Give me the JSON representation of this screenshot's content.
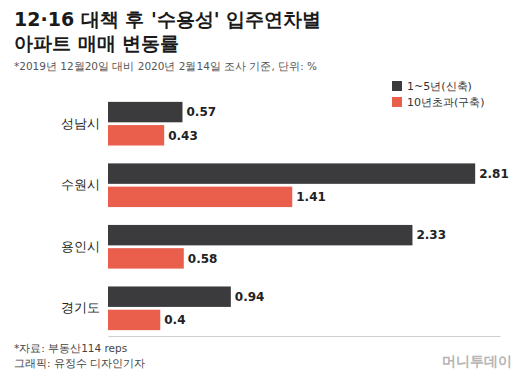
{
  "chart_data": {
    "type": "bar",
    "orientation": "horizontal",
    "title": "12·16 대책 후 '수용성' 입주연차별\n아파트 매매 변동률",
    "subtitle": "*2019년 12월20일 대비 2020년 2월14일 조사 기준, 단위: %",
    "categories": [
      "성남시",
      "수원시",
      "용인시",
      "경기도"
    ],
    "series": [
      {
        "name": "1~5년(신축)",
        "color": "#3b3b3d",
        "values": [
          0.57,
          2.81,
          2.33,
          0.94
        ]
      },
      {
        "name": "10년초과(구축)",
        "color": "#ea5f4c",
        "values": [
          0.43,
          1.41,
          0.58,
          0.4
        ]
      }
    ],
    "xlim": [
      0,
      3
    ],
    "tick_labels": false,
    "grid": false,
    "legend": "top-right",
    "data_labels": true,
    "annotations": [
      "*자료: 부동산114 reps",
      "그래픽: 유정수 디자인기자",
      "머니투데이"
    ]
  }
}
